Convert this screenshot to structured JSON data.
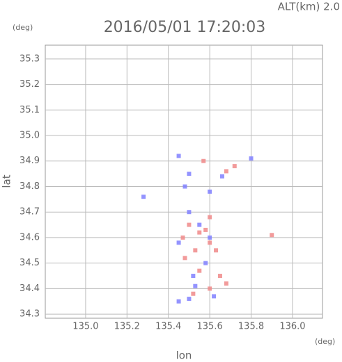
{
  "chart_data": {
    "type": "scatter",
    "title": "2016/05/01 17:20:03",
    "annotation": "ALT(km) 2.0",
    "x_unit": "(deg)",
    "y_unit": "(deg)",
    "x_label": "lon",
    "y_label": "lat",
    "xlim": [
      134.805,
      136.145
    ],
    "ylim": [
      34.284,
      35.354
    ],
    "xticks": [
      {
        "value": 135.0,
        "label": "135.0"
      },
      {
        "value": 135.2,
        "label": "135.2"
      },
      {
        "value": 135.4,
        "label": "135.4"
      },
      {
        "value": 135.6,
        "label": "135.6"
      },
      {
        "value": 135.8,
        "label": "135.8"
      },
      {
        "value": 136.0,
        "label": "136.0"
      }
    ],
    "yticks": [
      34.3,
      34.4,
      34.5,
      34.6,
      34.7,
      34.8,
      34.9,
      {
        "value": 35.0,
        "label": "35.0"
      },
      35.1,
      35.2,
      35.3
    ],
    "grid": true,
    "series": [
      {
        "color": "#f08a8a",
        "x": [
          135.5,
          135.55,
          135.6,
          135.47,
          135.53,
          135.6,
          135.65,
          135.68,
          135.55,
          135.9,
          135.52,
          135.6,
          135.63,
          135.58,
          135.48,
          135.57,
          135.72,
          135.68
        ],
        "values": [
          34.65,
          34.62,
          34.58,
          34.6,
          34.55,
          34.68,
          34.45,
          34.42,
          34.47,
          34.61,
          34.38,
          34.4,
          34.55,
          34.63,
          34.52,
          34.9,
          34.88,
          34.86
        ]
      },
      {
        "color": "#8080ff",
        "x": [
          135.28,
          135.45,
          135.5,
          135.6,
          135.48,
          135.5,
          135.45,
          135.6,
          135.52,
          135.58,
          135.5,
          135.45,
          135.62,
          135.55,
          135.8,
          135.66,
          135.53
        ],
        "values": [
          34.76,
          34.92,
          34.85,
          34.78,
          34.8,
          34.7,
          34.58,
          34.6,
          34.45,
          34.5,
          34.36,
          34.35,
          34.37,
          34.65,
          34.91,
          34.84,
          34.41
        ]
      }
    ]
  }
}
